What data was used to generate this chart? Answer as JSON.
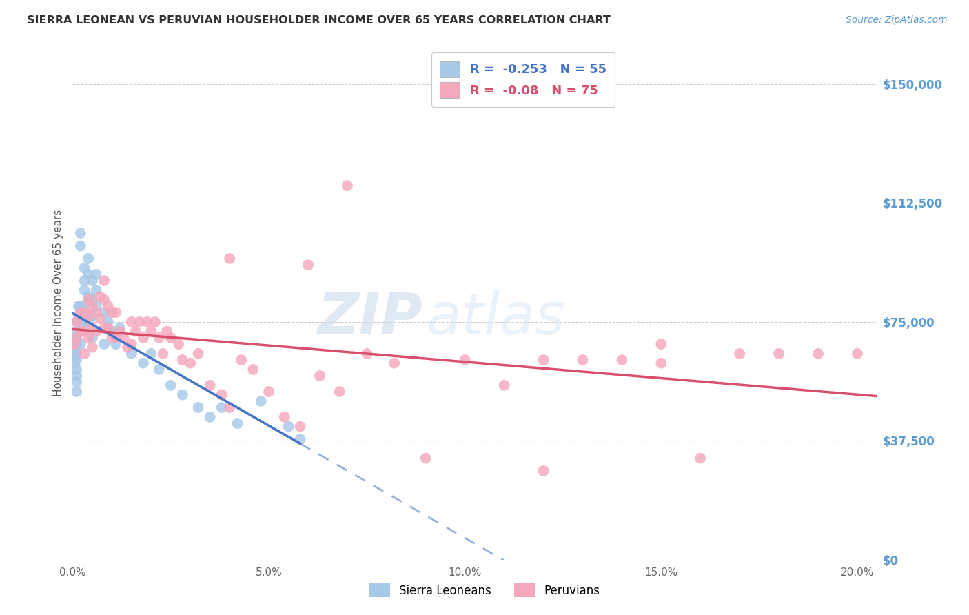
{
  "title": "SIERRA LEONEAN VS PERUVIAN HOUSEHOLDER INCOME OVER 65 YEARS CORRELATION CHART",
  "source": "Source: ZipAtlas.com",
  "ylabel": "Householder Income Over 65 years",
  "xlabel_ticks": [
    "0.0%",
    "5.0%",
    "10.0%",
    "15.0%",
    "20.0%"
  ],
  "xlabel_vals": [
    0.0,
    0.05,
    0.1,
    0.15,
    0.2
  ],
  "ylabel_ticks": [
    "$0",
    "$37,500",
    "$75,000",
    "$112,500",
    "$150,000"
  ],
  "ylabel_vals": [
    0,
    37500,
    75000,
    112500,
    150000
  ],
  "xlim": [
    0.0,
    0.205
  ],
  "ylim": [
    0,
    162000
  ],
  "sierra_R": -0.253,
  "sierra_N": 55,
  "peru_R": -0.08,
  "peru_N": 75,
  "sierra_color": "#a8c8e8",
  "peru_color": "#f4a8bc",
  "sierra_line_color": "#4472c4",
  "peru_line_color": "#d94f6b",
  "sierra_x": [
    0.0005,
    0.0005,
    0.0005,
    0.001,
    0.001,
    0.001,
    0.001,
    0.001,
    0.001,
    0.001,
    0.001,
    0.001,
    0.001,
    0.0015,
    0.0015,
    0.002,
    0.002,
    0.002,
    0.002,
    0.002,
    0.003,
    0.003,
    0.003,
    0.003,
    0.003,
    0.004,
    0.004,
    0.004,
    0.004,
    0.005,
    0.005,
    0.005,
    0.005,
    0.006,
    0.006,
    0.006,
    0.008,
    0.008,
    0.009,
    0.01,
    0.011,
    0.012,
    0.015,
    0.018,
    0.02,
    0.022,
    0.025,
    0.028,
    0.032,
    0.035,
    0.038,
    0.042,
    0.048,
    0.055,
    0.058
  ],
  "sierra_y": [
    68000,
    65000,
    62000,
    75000,
    72000,
    70000,
    68000,
    65000,
    63000,
    60000,
    58000,
    56000,
    53000,
    80000,
    77000,
    103000,
    99000,
    80000,
    73000,
    68000,
    92000,
    88000,
    85000,
    80000,
    75000,
    95000,
    90000,
    83000,
    75000,
    88000,
    82000,
    77000,
    70000,
    90000,
    85000,
    80000,
    78000,
    68000,
    75000,
    72000,
    68000,
    73000,
    65000,
    62000,
    65000,
    60000,
    55000,
    52000,
    48000,
    45000,
    48000,
    43000,
    50000,
    42000,
    38000
  ],
  "peru_x": [
    0.0005,
    0.001,
    0.001,
    0.002,
    0.002,
    0.003,
    0.003,
    0.003,
    0.004,
    0.004,
    0.004,
    0.005,
    0.005,
    0.005,
    0.006,
    0.006,
    0.007,
    0.007,
    0.008,
    0.008,
    0.008,
    0.009,
    0.009,
    0.01,
    0.01,
    0.011,
    0.011,
    0.012,
    0.013,
    0.014,
    0.015,
    0.015,
    0.016,
    0.017,
    0.018,
    0.019,
    0.02,
    0.021,
    0.022,
    0.023,
    0.024,
    0.025,
    0.027,
    0.028,
    0.03,
    0.032,
    0.035,
    0.038,
    0.04,
    0.043,
    0.046,
    0.05,
    0.054,
    0.058,
    0.063,
    0.068,
    0.075,
    0.082,
    0.09,
    0.1,
    0.11,
    0.12,
    0.13,
    0.14,
    0.15,
    0.16,
    0.17,
    0.18,
    0.19,
    0.2,
    0.04,
    0.06,
    0.07,
    0.12,
    0.15
  ],
  "peru_y": [
    68000,
    75000,
    70000,
    78000,
    72000,
    78000,
    72000,
    65000,
    82000,
    77000,
    70000,
    80000,
    73000,
    67000,
    78000,
    72000,
    83000,
    76000,
    88000,
    82000,
    73000,
    80000,
    73000,
    78000,
    70000,
    78000,
    70000,
    72000,
    70000,
    67000,
    75000,
    68000,
    72000,
    75000,
    70000,
    75000,
    72000,
    75000,
    70000,
    65000,
    72000,
    70000,
    68000,
    63000,
    62000,
    65000,
    55000,
    52000,
    48000,
    63000,
    60000,
    53000,
    45000,
    42000,
    58000,
    53000,
    65000,
    62000,
    32000,
    63000,
    55000,
    63000,
    63000,
    63000,
    62000,
    32000,
    65000,
    65000,
    65000,
    65000,
    95000,
    93000,
    118000,
    28000,
    68000
  ],
  "watermark_zip": "ZIP",
  "watermark_atlas": "atlas",
  "background_color": "#ffffff",
  "grid_color": "#d0d0d0",
  "title_color": "#333333",
  "right_label_color": "#5b9bd5"
}
